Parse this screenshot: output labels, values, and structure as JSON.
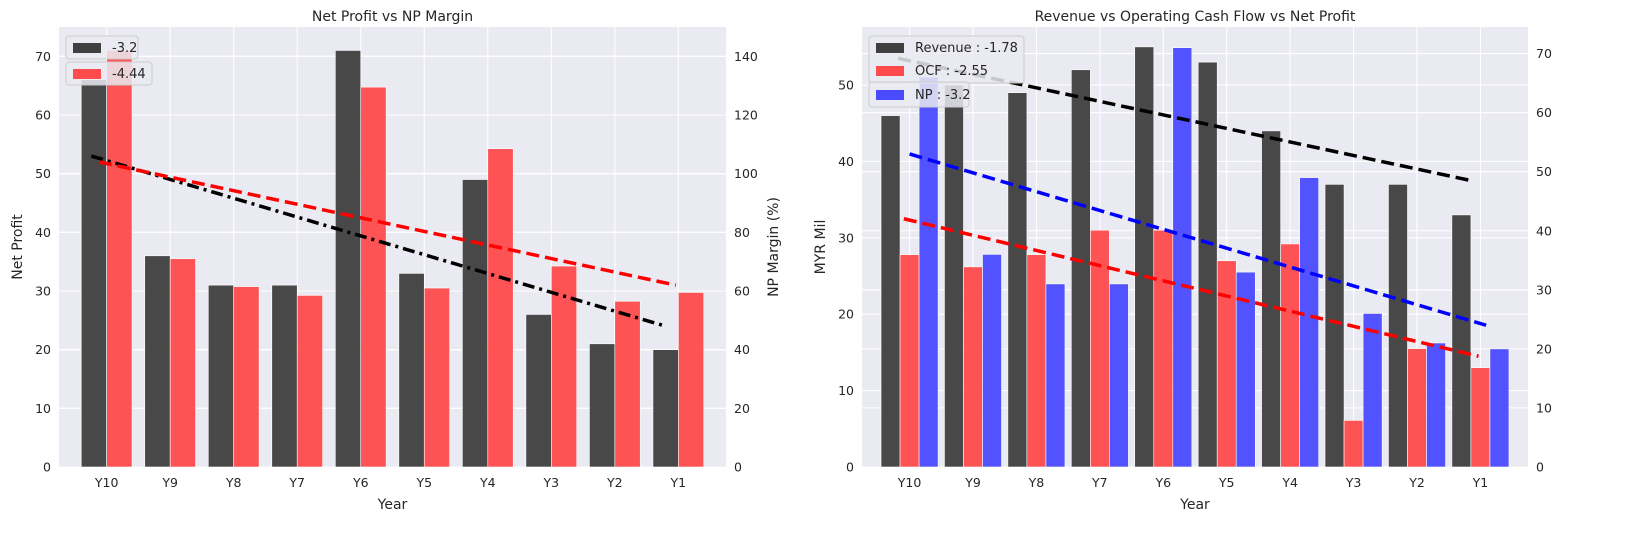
{
  "colors": {
    "panel_bg": "#eaeaf2",
    "grid": "#ffffff",
    "black": "#3f3f3f",
    "red": "#ff4b4b",
    "blue": "#4a4aff",
    "trend_black": "#000000",
    "trend_red": "#ff0000",
    "trend_blue": "#0000ff"
  },
  "chart_data": [
    {
      "type": "bar",
      "title": "Net Profit vs NP Margin",
      "xlabel": "Year",
      "ylabel": "Net Profit",
      "y2label": "NP Margin (%)",
      "categories": [
        "Y10",
        "Y9",
        "Y8",
        "Y7",
        "Y6",
        "Y5",
        "Y4",
        "Y3",
        "Y2",
        "Y1"
      ],
      "ylim": [
        0,
        75
      ],
      "y2lim": [
        0,
        150
      ],
      "yticks": [
        0,
        10,
        20,
        30,
        40,
        50,
        60,
        70
      ],
      "y2ticks": [
        0,
        20,
        40,
        60,
        80,
        100,
        120,
        140
      ],
      "series": [
        {
          "name": "-3.2",
          "axis": "left",
          "color_key": "black",
          "values": [
            66,
            36,
            31,
            31,
            71,
            33,
            49,
            26,
            21,
            20
          ],
          "trend": {
            "start": 53,
            "end": 24,
            "color_key": "trend_black",
            "dash": "dashdot"
          }
        },
        {
          "name": "-4.44",
          "axis": "right",
          "color_key": "red",
          "values": [
            142,
            71,
            61.5,
            58.5,
            129.5,
            61,
            108.5,
            68.5,
            56.5,
            59.5
          ],
          "trend": {
            "start": 104,
            "end": 62,
            "color_key": "trend_red",
            "dash": "dash"
          }
        }
      ],
      "legend_placement": "top-left",
      "grid": true
    },
    {
      "type": "bar",
      "title": "Revenue vs Operating Cash Flow vs Net Profit",
      "xlabel": "Year",
      "ylabel": "MYR Mil",
      "categories": [
        "Y10",
        "Y9",
        "Y8",
        "Y7",
        "Y6",
        "Y5",
        "Y4",
        "Y3",
        "Y2",
        "Y1"
      ],
      "ylim": [
        0,
        57.6
      ],
      "y2lim": [
        0,
        74.5
      ],
      "yticks": [
        0,
        10,
        20,
        30,
        40,
        50
      ],
      "y2ticks": [
        0,
        10,
        20,
        30,
        40,
        50,
        60,
        70
      ],
      "series": [
        {
          "name": "Revenue : -1.78",
          "axis": "left",
          "color_key": "black",
          "values": [
            46,
            50,
            49,
            52,
            55,
            53,
            44,
            37,
            37,
            33
          ],
          "trend": {
            "start": 53.5,
            "end": 37.5,
            "color_key": "trend_black",
            "dash": "dash"
          }
        },
        {
          "name": "OCF : -2.55",
          "axis": "left",
          "color_key": "red",
          "values": [
            27.8,
            26.2,
            27.8,
            31,
            31,
            27,
            29.2,
            6.1,
            15.5,
            13
          ],
          "trend": {
            "start": 32.5,
            "end": 14.5,
            "color_key": "trend_red",
            "dash": "dash"
          }
        },
        {
          "name": "NP : -3.2",
          "axis": "right",
          "color_key": "blue",
          "values": [
            66,
            36,
            31,
            31,
            71,
            33,
            49,
            26,
            21,
            20
          ],
          "trend": {
            "start": 53,
            "end": 24,
            "color_key": "trend_blue",
            "dash": "dash"
          }
        }
      ],
      "legend_placement": "top-left",
      "grid": true
    }
  ]
}
